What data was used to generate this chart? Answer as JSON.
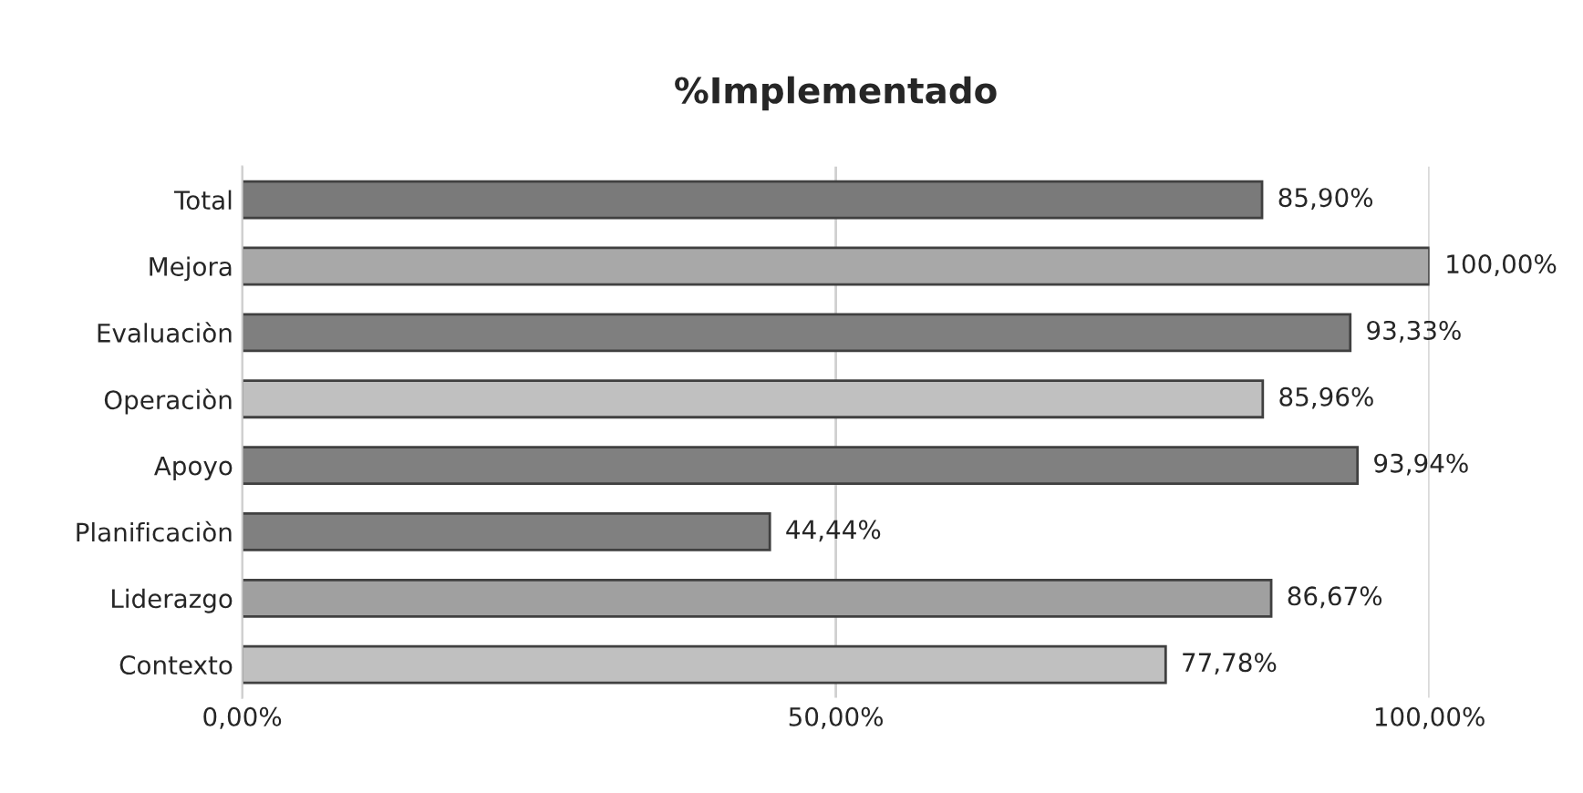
{
  "chart_data": {
    "type": "bar",
    "orientation": "horizontal",
    "title": "%Implementado",
    "categories": [
      "Total",
      "Mejora",
      "Evaluaciòn",
      "Operaciòn",
      "Apoyo",
      "Planificaciòn",
      "Liderazgo",
      "Contexto"
    ],
    "values": [
      85.9,
      100.0,
      93.33,
      85.96,
      93.94,
      44.44,
      86.67,
      77.78
    ],
    "colors": [
      "#7a7a7a",
      "#a8a8a8",
      "#7f7f7f",
      "#c0c0c0",
      "#808080",
      "#808080",
      "#a0a0a0",
      "#c0c0c0"
    ],
    "value_labels": [
      "85,90%",
      "100,00%",
      "93,33%",
      "85,96%",
      "93,94%",
      "44,44%",
      "86,67%",
      "77,78%"
    ],
    "xlim": [
      0,
      100
    ],
    "xticks": [
      {
        "value": 0,
        "label": "0,00%"
      },
      {
        "value": 50,
        "label": "50,00%"
      },
      {
        "value": 100,
        "label": "100,00%"
      }
    ],
    "grid": "x"
  }
}
